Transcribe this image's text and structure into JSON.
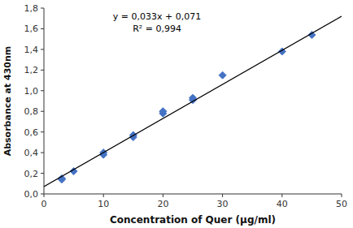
{
  "chart_data": {
    "type": "scatter",
    "xlabel": "Concentration of Quer (μg/ml)",
    "ylabel": "Absorbance at 430nm",
    "annotations": [
      "y = 0,033x + 0,071",
      "R² = 0,994"
    ],
    "series": [
      {
        "type": "scatter",
        "marker": "diamond",
        "color": "#4472C4",
        "x": [
          3,
          3,
          5,
          10,
          10,
          15,
          15,
          20,
          20,
          25,
          25,
          30,
          40,
          45
        ],
        "values": [
          0.14,
          0.15,
          0.22,
          0.38,
          0.4,
          0.55,
          0.57,
          0.78,
          0.8,
          0.91,
          0.93,
          1.15,
          1.38,
          1.54
        ]
      },
      {
        "type": "line",
        "line_style": "solid",
        "color": "black",
        "x": [
          0,
          50
        ],
        "values": [
          0.071,
          1.721
        ]
      }
    ],
    "xlim": [
      0,
      50
    ],
    "ylim": [
      0.0,
      1.8
    ],
    "xticks": [
      0,
      10,
      20,
      30,
      40,
      50
    ],
    "yticks": [
      {
        "value": 0.0,
        "label": "0,0"
      },
      {
        "value": 0.2,
        "label": "0,2"
      },
      {
        "value": 0.4,
        "label": "0,4"
      },
      {
        "value": 0.6,
        "label": "0,6"
      },
      {
        "value": 0.8,
        "label": "0,8"
      },
      {
        "value": 1.0,
        "label": "1,0"
      },
      {
        "value": 1.2,
        "label": "1,2"
      },
      {
        "value": 1.4,
        "label": "1,4"
      },
      {
        "value": 1.6,
        "label": "1,6"
      },
      {
        "value": 1.8,
        "label": "1,8"
      }
    ],
    "grid": false
  }
}
